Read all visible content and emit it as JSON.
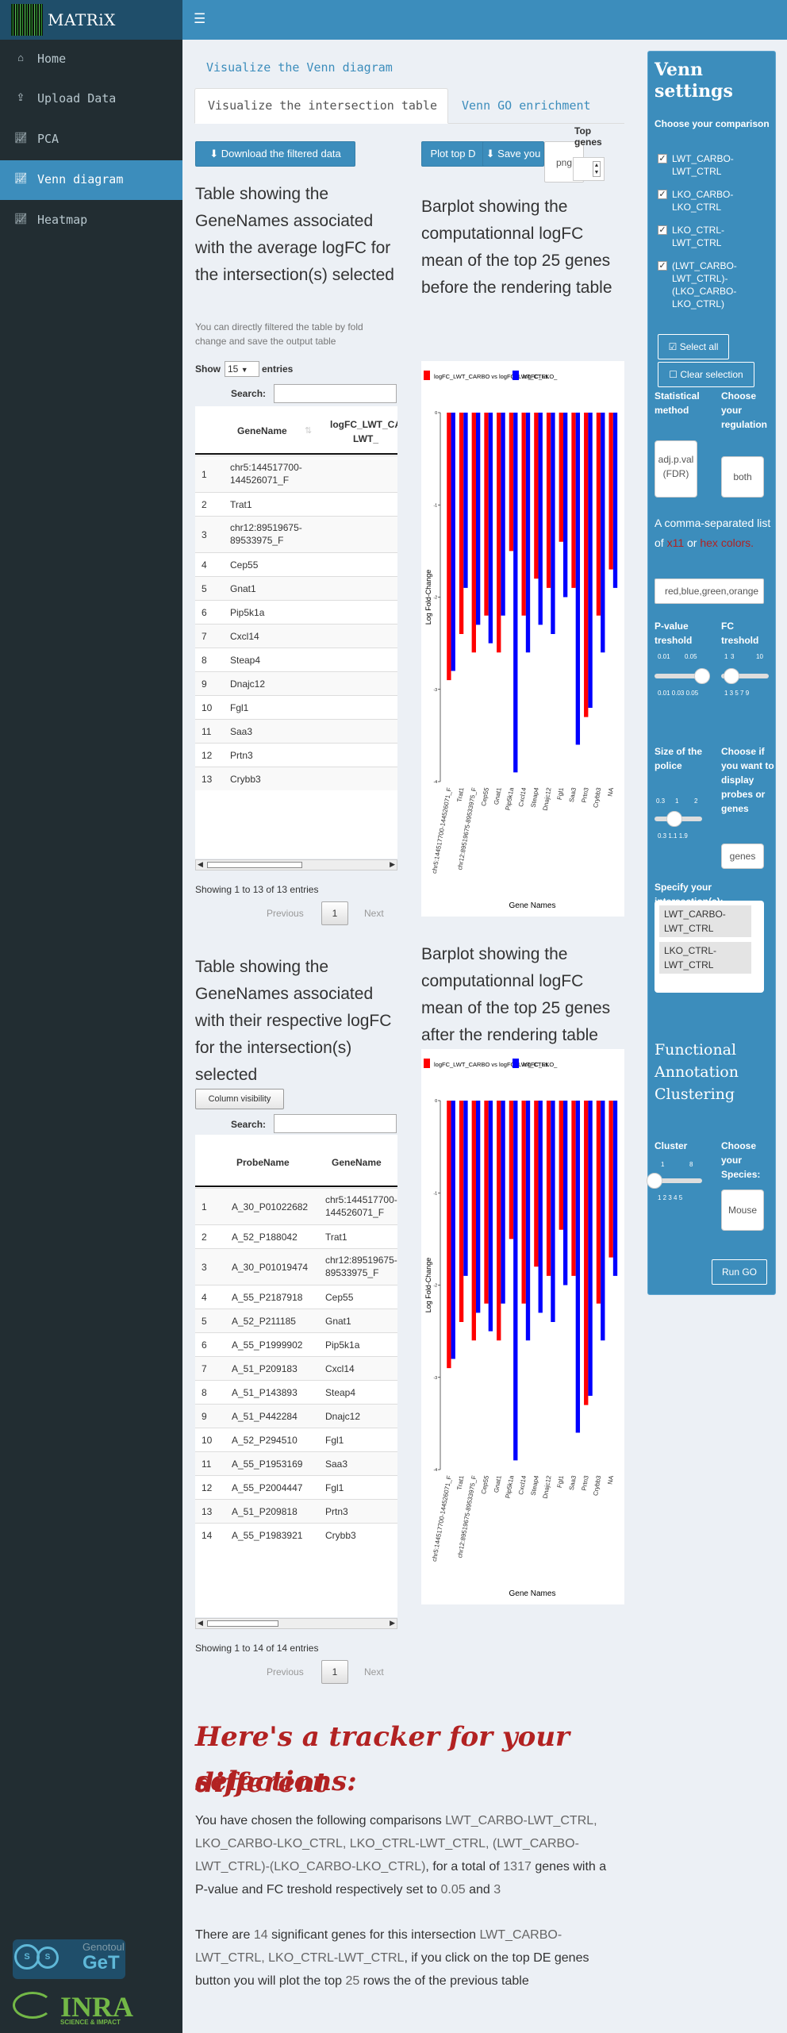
{
  "app": {
    "title": "MATRiX"
  },
  "sidebar": {
    "items": [
      {
        "label": "Home",
        "icon": "home-icon"
      },
      {
        "label": "Upload Data",
        "icon": "upload-icon"
      },
      {
        "label": "PCA",
        "icon": "line-chart-icon"
      },
      {
        "label": "Venn diagram",
        "icon": "line-chart-icon",
        "active": true
      },
      {
        "label": "Heatmap",
        "icon": "line-chart-icon"
      }
    ]
  },
  "branding": {
    "genotoul_small": "Genotoul",
    "genotoul_big": "GeT",
    "inra": "INRA",
    "inra_tagline": "SCIENCE & IMPACT"
  },
  "tabs": {
    "visualize": "Visualize the Venn diagram",
    "intersection": "Visualize the intersection table",
    "go": "Venn GO enrichment"
  },
  "toolbar": {
    "download": "Download the filtered data",
    "plot_top": "Plot top D",
    "save": "Save you",
    "top_genes_label": "Top genes",
    "png_value": "png"
  },
  "table1": {
    "title": "Table showing the GeneNames associated with the average logFC for the intersection(s) selected",
    "subtitle": "You can directly filtered the table by fold change and save the output table",
    "show_label": "Show",
    "show_value": "15",
    "entries_label": "entries",
    "search_label": "Search:",
    "columns": [
      "GeneName",
      "logFC_LWT_CA LWT_"
    ],
    "rows": [
      [
        "1",
        "chr5:144517700-144526071_F"
      ],
      [
        "2",
        "Trat1"
      ],
      [
        "3",
        "chr12:89519675-89533975_F"
      ],
      [
        "4",
        "Cep55"
      ],
      [
        "5",
        "Gnat1"
      ],
      [
        "6",
        "Pip5k1a"
      ],
      [
        "7",
        "Cxcl14"
      ],
      [
        "8",
        "Steap4"
      ],
      [
        "9",
        "Dnajc12"
      ],
      [
        "10",
        "Fgl1"
      ],
      [
        "11",
        "Saa3"
      ],
      [
        "12",
        "Prtn3"
      ],
      [
        "13",
        "Crybb3"
      ]
    ],
    "info": "Showing 1 to 13 of 13 entries",
    "prev": "Previous",
    "page": "1",
    "next": "Next"
  },
  "table2": {
    "title": "Table showing the GeneNames associated with their respective logFC for the intersection(s) selected",
    "colvis": "Column visibility",
    "search_label": "Search:",
    "columns": [
      "ProbeName",
      "GeneName"
    ],
    "rows": [
      [
        "1",
        "A_30_P01022682",
        "chr5:144517700-144526071_F"
      ],
      [
        "2",
        "A_52_P188042",
        "Trat1"
      ],
      [
        "3",
        "A_30_P01019474",
        "chr12:89519675-89533975_F"
      ],
      [
        "4",
        "A_55_P2187918",
        "Cep55"
      ],
      [
        "5",
        "A_52_P211185",
        "Gnat1"
      ],
      [
        "6",
        "A_55_P1999902",
        "Pip5k1a"
      ],
      [
        "7",
        "A_51_P209183",
        "Cxcl14"
      ],
      [
        "8",
        "A_51_P143893",
        "Steap4"
      ],
      [
        "9",
        "A_51_P442284",
        "Dnajc12"
      ],
      [
        "10",
        "A_52_P294510",
        "Fgl1"
      ],
      [
        "11",
        "A_55_P1953169",
        "Saa3"
      ],
      [
        "12",
        "A_55_P2004447",
        "Fgl1"
      ],
      [
        "13",
        "A_51_P209818",
        "Prtn3"
      ],
      [
        "14",
        "A_55_P1983921",
        "Crybb3"
      ]
    ],
    "info": "Showing 1 to 14 of 14 entries",
    "prev": "Previous",
    "page": "1",
    "next": "Next"
  },
  "chart1_title": "Barplot showing the computationnal logFC mean of the top 25 genes before the rendering table",
  "chart2_title": "Barplot showing the computationnal logFC mean of the top 25 genes after the rendering table",
  "chart_data": [
    {
      "type": "bar",
      "title": "",
      "xlabel": "Gene Names",
      "ylabel": "Log Fold-Change",
      "ylim": [
        -4,
        0
      ],
      "yticks": [
        "0",
        "-1",
        "-2",
        "-3",
        "-4"
      ],
      "categories": [
        "chr5:144517700-144526071_F",
        "Trat1",
        "chr12:89519675-89533975_F",
        "Cep55",
        "Gnat1",
        "Pip5k1a",
        "Cxcl14",
        "Steap4",
        "Dnajc12",
        "Fgl1",
        "Saa3",
        "Prtn3",
        "Crybb3",
        "NA"
      ],
      "series": [
        {
          "name": "logFC_LWT_CARBO vs logFC_LWT_CTRL",
          "color": "#ff0000",
          "values": [
            -2.9,
            -2.4,
            -2.6,
            -2.2,
            -2.6,
            -1.5,
            -2.2,
            -1.8,
            -1.9,
            -1.4,
            -1.9,
            -3.3,
            -2.2,
            -1.7
          ]
        },
        {
          "name": "logFC_LKO_",
          "color": "#0000ff",
          "values": [
            -2.8,
            -1.9,
            -2.3,
            -2.5,
            -2.2,
            -3.9,
            -2.6,
            -2.3,
            -2.4,
            -2.0,
            -3.6,
            -3.2,
            -2.6,
            -1.9
          ]
        }
      ]
    },
    {
      "type": "bar",
      "title": "",
      "xlabel": "Gene Names",
      "ylabel": "Log Fold-Change",
      "ylim": [
        -4,
        0
      ],
      "yticks": [
        "0",
        "-1",
        "-2",
        "-3",
        "-4"
      ],
      "categories": [
        "chr5:144517700-144526071_F",
        "Trat1",
        "chr12:89519675-89533975_F",
        "Cep55",
        "Gnat1",
        "Pip5k1a",
        "Cxcl14",
        "Steap4",
        "Dnajc12",
        "Fgl1",
        "Saa3",
        "Prtn3",
        "Crybb3",
        "NA"
      ],
      "series": [
        {
          "name": "logFC_LWT_CARBO vs logFC_LWT_CTRL",
          "color": "#ff0000",
          "values": [
            -2.9,
            -2.4,
            -2.6,
            -2.2,
            -2.6,
            -1.5,
            -2.2,
            -1.8,
            -1.9,
            -1.4,
            -1.9,
            -3.3,
            -2.2,
            -1.7
          ]
        },
        {
          "name": "logFC_LKO_",
          "color": "#0000ff",
          "values": [
            -2.8,
            -1.9,
            -2.3,
            -2.5,
            -2.2,
            -3.9,
            -2.6,
            -2.3,
            -2.4,
            -2.0,
            -3.6,
            -3.2,
            -2.6,
            -1.9
          ]
        }
      ]
    }
  ],
  "settings": {
    "title": "Venn settings",
    "comparison_label": "Choose your comparison",
    "comparisons": [
      {
        "label": "LWT_CARBO-LWT_CTRL",
        "checked": true
      },
      {
        "label": "LKO_CARBO-LKO_CTRL",
        "checked": true
      },
      {
        "label": "LKO_CTRL-LWT_CTRL",
        "checked": true
      },
      {
        "label": "(LWT_CARBO-LWT_CTRL)-(LKO_CARBO-LKO_CTRL)",
        "checked": true
      }
    ],
    "select_all": "Select all",
    "clear_selection": "Clear selection",
    "stat_label": "Statistical method",
    "stat_value": "adj.p.val (FDR)",
    "regulation_label": "Choose your regulation",
    "regulation_value": "both",
    "colors_intro": "A comma-separated list of",
    "colors_x11": "x11",
    "colors_or": "or",
    "colors_hex": "hex colors.",
    "colors_value": "red,blue,green,orange",
    "pvalue_label": "P-value treshold",
    "pvalue_min": "0.01",
    "pvalue_max": "0.05",
    "pvalue_ticks": "0.01 0.03 0.05",
    "pvalue": 0.05,
    "fc_label": "FC treshold",
    "fc_min": "1",
    "fc_val": "3",
    "fc_max": "10",
    "fc_ticks": "1 3 5 7 9",
    "fc": 3,
    "police_label": "Size of the police",
    "police_min": "0.3",
    "police_val": "1",
    "police_max": "2",
    "police_ticks": "0.3 1.1 1.9",
    "police": 1,
    "display_label": "Choose if you want to display probes or genes",
    "display_value": "genes",
    "intersection_label": "Specify your intersection(s):",
    "intersections": [
      "LWT_CARBO-LWT_CTRL",
      "LKO_CTRL-LWT_CTRL"
    ],
    "fac_title": "Functional Annotation Clustering",
    "cluster_label": "Cluster",
    "cluster_min": "1",
    "cluster_max": "8",
    "cluster_ticks": "1 2 3 4 5",
    "cluster": 1,
    "species_label": "Choose your Species:",
    "species_value": "Mouse",
    "run_go": "Run GO"
  },
  "tracker": {
    "title_line1": "Here's a tracker for your different",
    "title_line2": "selections:",
    "p1_a": "You have chosen the following comparisons",
    "p1_b": "LWT_CARBO-LWT_CTRL, LKO_CARBO-LKO_CTRL, LKO_CTRL-LWT_CTRL, (LWT_CARBO-LWT_CTRL)-(LKO_CARBO-LKO_CTRL)",
    "p1_c": ", for a total of",
    "p1_total": "1317",
    "p1_d": "genes with a P-value and FC treshold respectively set to",
    "p1_pval": "0.05",
    "p1_and": "and",
    "p1_fc": "3",
    "p2_a": "There are",
    "p2_count": "14",
    "p2_b": "significant genes for this intersection",
    "p2_inter": "LWT_CARBO-LWT_CTRL, LKO_CTRL-LWT_CTRL",
    "p2_c": ", if you click on the top DE genes button you will plot the top",
    "p2_top": "25",
    "p2_d": "rows the of the previous table"
  }
}
